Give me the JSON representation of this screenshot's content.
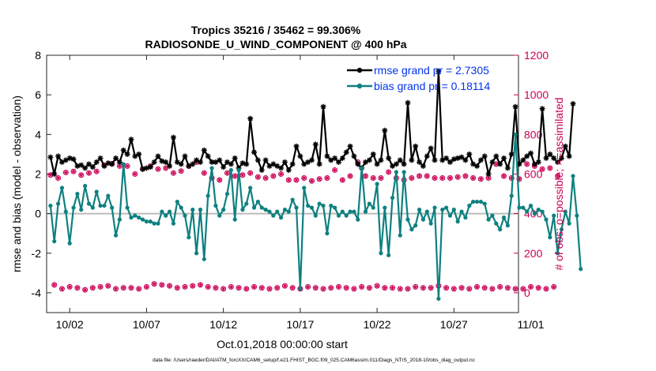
{
  "chart_data": {
    "type": "line",
    "title_line1": "Tropics 35216 / 35462 = 99.306%",
    "title_line2": "RADIOSONDE_U_WIND_COMPONENT @ 400 hPa",
    "xlabel": "Oct.01,2018 00:00:00 start",
    "ylabel_left": "rmse and bias (model - observation)",
    "ylabel_right": "# of obs: o=possible; ×=assimilated",
    "footer": "data file: /Users/raeder/DAI/ATM_forcXX/CAM6_setup/f.e21.FHIST_BGC.f09_025.CAM6assim.011/Diags_NTrS_2018-10/obs_diag_output.nc",
    "x_range": [
      0.5,
      31.2
    ],
    "x_ticks": [
      2,
      7,
      12,
      17,
      22,
      27,
      32
    ],
    "x_tick_labels": [
      "10/02",
      "10/07",
      "10/12",
      "10/17",
      "10/22",
      "10/27",
      "11/01"
    ],
    "ylim_left": [
      -5,
      8
    ],
    "y_ticks_left": [
      -4,
      -2,
      0,
      2,
      4,
      6,
      8
    ],
    "ylim_right": [
      -100,
      1200
    ],
    "y_ticks_right": [
      0,
      200,
      400,
      600,
      800,
      1000,
      1200
    ],
    "zero_line": 0,
    "colors": {
      "rmse": "#000000",
      "bias": "#0f8080",
      "obs": "#cc0055",
      "legend_text": "#0033ee",
      "right_axis": "#cc0055",
      "zero_line": "#bbbbbb"
    },
    "legend": {
      "position": "top-right",
      "entries": [
        "rmse grand pr = 2.7305",
        "bias grand pr = 0.18114"
      ]
    },
    "series": [
      {
        "name": "rmse",
        "axis": "left",
        "x_start": 0.75,
        "x_step": 0.25,
        "values": [
          2.85,
          2.0,
          2.9,
          2.6,
          2.7,
          2.8,
          2.75,
          2.4,
          2.45,
          2.3,
          2.5,
          2.35,
          2.6,
          2.8,
          2.4,
          2.55,
          2.5,
          2.8,
          2.6,
          3.2,
          3.0,
          3.75,
          2.9,
          3.0,
          2.25,
          2.3,
          2.35,
          2.6,
          2.9,
          2.65,
          2.6,
          2.4,
          3.85,
          2.6,
          2.5,
          2.9,
          2.4,
          2.5,
          2.7,
          2.6,
          3.2,
          2.9,
          2.6,
          2.6,
          2.7,
          2.35,
          2.6,
          2.5,
          2.8,
          2.3,
          2.55,
          2.5,
          4.8,
          3.1,
          2.7,
          2.2,
          2.7,
          2.4,
          2.5,
          2.4,
          2.3,
          2.6,
          2.2,
          2.5,
          3.4,
          2.9,
          2.5,
          2.6,
          2.7,
          3.5,
          2.5,
          5.4,
          2.9,
          2.7,
          2.8,
          2.6,
          2.8,
          3.1,
          3.4,
          2.9,
          2.5,
          2.3,
          2.6,
          2.7,
          3.0,
          2.5,
          2.7,
          4.2,
          2.8,
          2.4,
          2.5,
          2.7,
          2.5,
          5.6,
          2.7,
          3.4,
          2.6,
          2.4,
          2.9,
          3.3,
          2.7,
          7.2,
          2.7,
          2.8,
          2.6,
          2.75,
          2.8,
          2.85,
          2.7,
          3.0,
          2.5,
          2.4,
          2.7,
          2.9,
          2.0,
          2.6,
          2.9,
          2.5,
          2.8,
          2.3,
          3.0,
          5.4,
          2.5,
          2.7,
          2.9,
          3.05,
          2.5,
          2.6,
          5.3,
          2.8,
          3.0,
          2.8,
          2.6,
          2.8,
          3.4,
          2.9,
          5.55
        ]
      },
      {
        "name": "bias",
        "axis": "left",
        "x_start": 0.75,
        "x_step": 0.25,
        "values": [
          0.4,
          -1.4,
          0.5,
          1.3,
          0.1,
          -1.5,
          0.3,
          1.0,
          0.2,
          1.4,
          0.5,
          0.3,
          1.1,
          0.4,
          0.4,
          0.9,
          0.3,
          -1.1,
          -0.3,
          2.5,
          0.3,
          -0.2,
          -0.1,
          -0.2,
          -0.3,
          -0.4,
          -0.4,
          -0.5,
          -0.5,
          0.1,
          -0.1,
          0.1,
          -0.5,
          0.6,
          0.3,
          -0.1,
          -1.2,
          0.2,
          -2.0,
          0.2,
          -2.3,
          0.9,
          2.3,
          0.4,
          -0.1,
          0.2,
          1.0,
          2.2,
          -0.3,
          2.2,
          0.2,
          0.5,
          1.3,
          0.3,
          0.6,
          0.3,
          0.2,
          0.1,
          -0.1,
          0.1,
          -0.2,
          0.2,
          0.1,
          0.7,
          0.3,
          -3.8,
          1.3,
          0.4,
          0.3,
          -0.1,
          0.5,
          0.4,
          -1.0,
          0.4,
          0.3,
          -0.1,
          0.1,
          -0.1,
          0.1,
          0.1,
          -0.3,
          2.3,
          0.1,
          0.5,
          0.3,
          1.5,
          -2.0,
          0.3,
          -2.1,
          0.8,
          2.1,
          -1.1,
          2.1,
          -0.3,
          -0.8,
          -0.6,
          0.2,
          -0.3,
          0.1,
          -0.5,
          0.3,
          -4.3,
          0.2,
          0.3,
          -0.1,
          0.2,
          -0.4,
          0.1,
          -0.2,
          0.4,
          0.6,
          0.6,
          0.6,
          0.5,
          -0.3,
          -0.1,
          -0.5,
          -0.8,
          -0.2,
          -0.6,
          0.9,
          4.0,
          0.3,
          0.3,
          0.1,
          0.4,
          0.0,
          0.2,
          0.1,
          -0.3,
          -1.2,
          -0.1,
          -2.0,
          -0.8,
          0.1,
          -0.5,
          1.9,
          -0.1,
          -2.8
        ]
      },
      {
        "name": "obs_possible",
        "axis": "right",
        "x_start": 0.75,
        "x_step": 0.25,
        "values": [
          595,
          40,
          580,
          20,
          608,
          30,
          613,
          25,
          595,
          15,
          605,
          25,
          613,
          30,
          645,
          35,
          652,
          20,
          640,
          25,
          640,
          25,
          600,
          20,
          625,
          30,
          640,
          45,
          625,
          40,
          630,
          35,
          605,
          25,
          615,
          30,
          640,
          35,
          660,
          40,
          605,
          30,
          580,
          25,
          570,
          20,
          605,
          30,
          590,
          25,
          595,
          20,
          605,
          30,
          585,
          25,
          580,
          20,
          590,
          25,
          600,
          35,
          570,
          25,
          570,
          20,
          580,
          30,
          565,
          25,
          575,
          20,
          580,
          25,
          620,
          30,
          570,
          25,
          590,
          20,
          660,
          30,
          590,
          25,
          580,
          35,
          580,
          25,
          610,
          25,
          580,
          20,
          570,
          20,
          580,
          30,
          590,
          25,
          590,
          25,
          580,
          35,
          580,
          25,
          580,
          20,
          585,
          25,
          590,
          20,
          580,
          30,
          575,
          25,
          580,
          20,
          650,
          30,
          590,
          25,
          580,
          20,
          575,
          20,
          650,
          30,
          640,
          25,
          625,
          20,
          630,
          30,
          590
        ]
      }
    ]
  }
}
